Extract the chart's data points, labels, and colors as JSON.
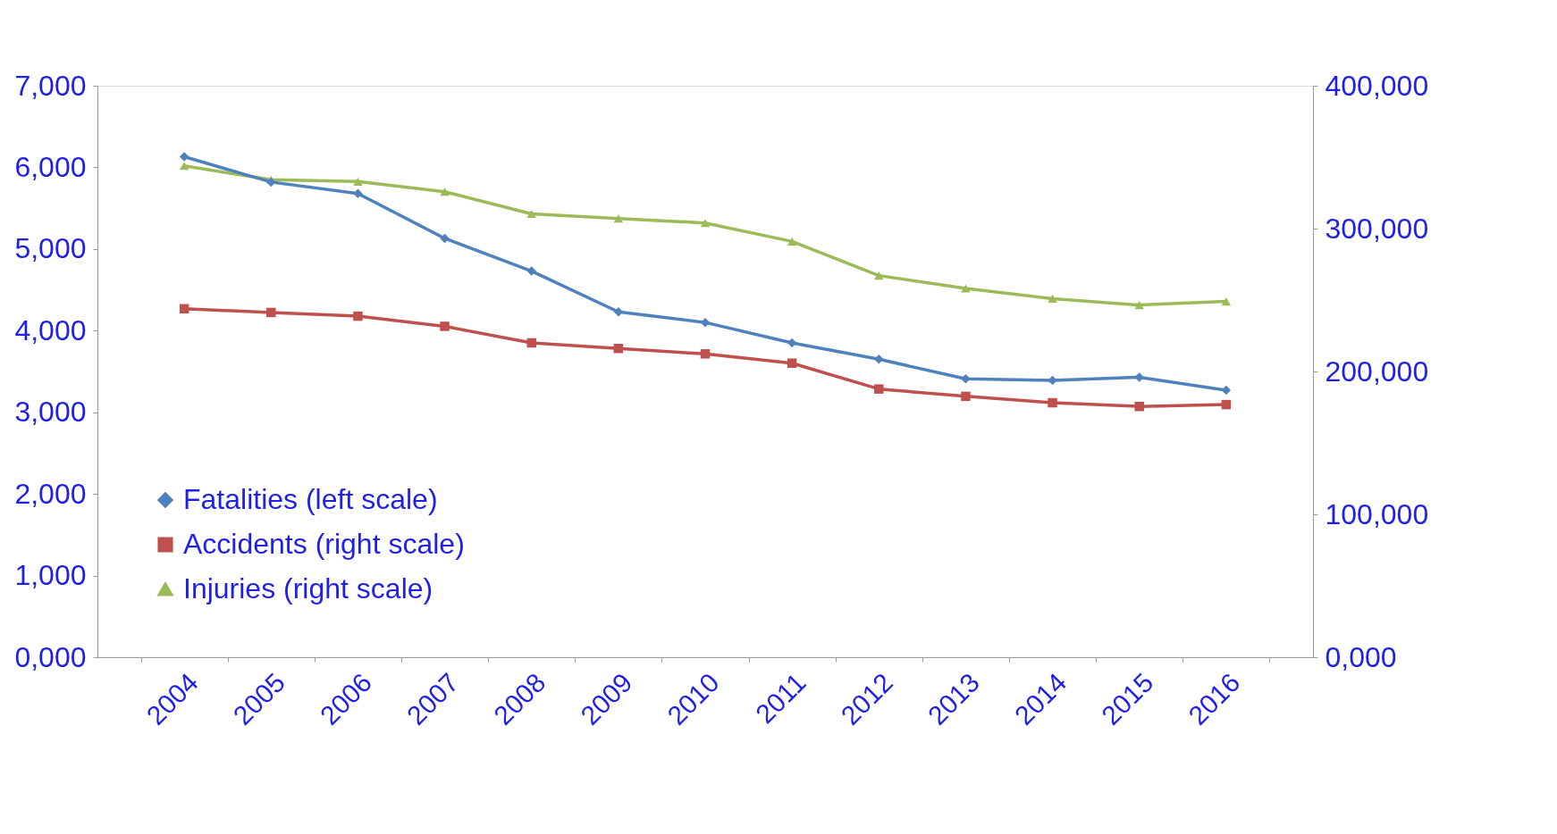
{
  "chart_data": {
    "type": "line",
    "categories": [
      "2004",
      "2005",
      "2006",
      "2007",
      "2008",
      "2009",
      "2010",
      "2011",
      "2012",
      "2013",
      "2014",
      "2015",
      "2016"
    ],
    "series": [
      {
        "name": "Fatalities (left scale)",
        "color": "#4f81bd",
        "marker": "diamond",
        "values": [
          6.13,
          5.82,
          5.68,
          5.13,
          4.73,
          4.23,
          4.1,
          3.85,
          3.65,
          3.41,
          3.39,
          3.43,
          3.27
        ]
      },
      {
        "name": "Accidents (right scale)",
        "color": "#c0504d",
        "marker": "square",
        "axis": "y2",
        "values": [
          243.9,
          241.3,
          238.7,
          231.6,
          220.0,
          216.1,
          212.3,
          205.8,
          187.7,
          182.6,
          178.1,
          175.5,
          176.8
        ]
      },
      {
        "name": "Injuries  (right scale)",
        "color": "#9bbb59",
        "marker": "triangle",
        "axis": "y2",
        "values": [
          343.9,
          334.2,
          332.9,
          325.8,
          310.3,
          307.1,
          303.9,
          291.0,
          267.1,
          258.1,
          251.0,
          246.5,
          249.0
        ]
      }
    ],
    "ylim": [
      0,
      7
    ],
    "yticks": [
      {
        "value": 0,
        "label": "0,000"
      },
      {
        "value": 1,
        "label": "1,000"
      },
      {
        "value": 2,
        "label": "2,000"
      },
      {
        "value": 3,
        "label": "3,000"
      },
      {
        "value": 4,
        "label": "4,000"
      },
      {
        "value": 5,
        "label": "5,000"
      },
      {
        "value": 6,
        "label": "6,000"
      },
      {
        "value": 7,
        "label": "7,000"
      }
    ],
    "y2lim": [
      0,
      400
    ],
    "y2ticks": [
      {
        "value": 0,
        "label": "0,000"
      },
      {
        "value": 100,
        "label": "100,000"
      },
      {
        "value": 200,
        "label": "200,000"
      },
      {
        "value": 300,
        "label": "300,000"
      },
      {
        "value": 400,
        "label": "400,000"
      }
    ],
    "grid": false,
    "legend": "bottom left",
    "line_style": "solid"
  }
}
